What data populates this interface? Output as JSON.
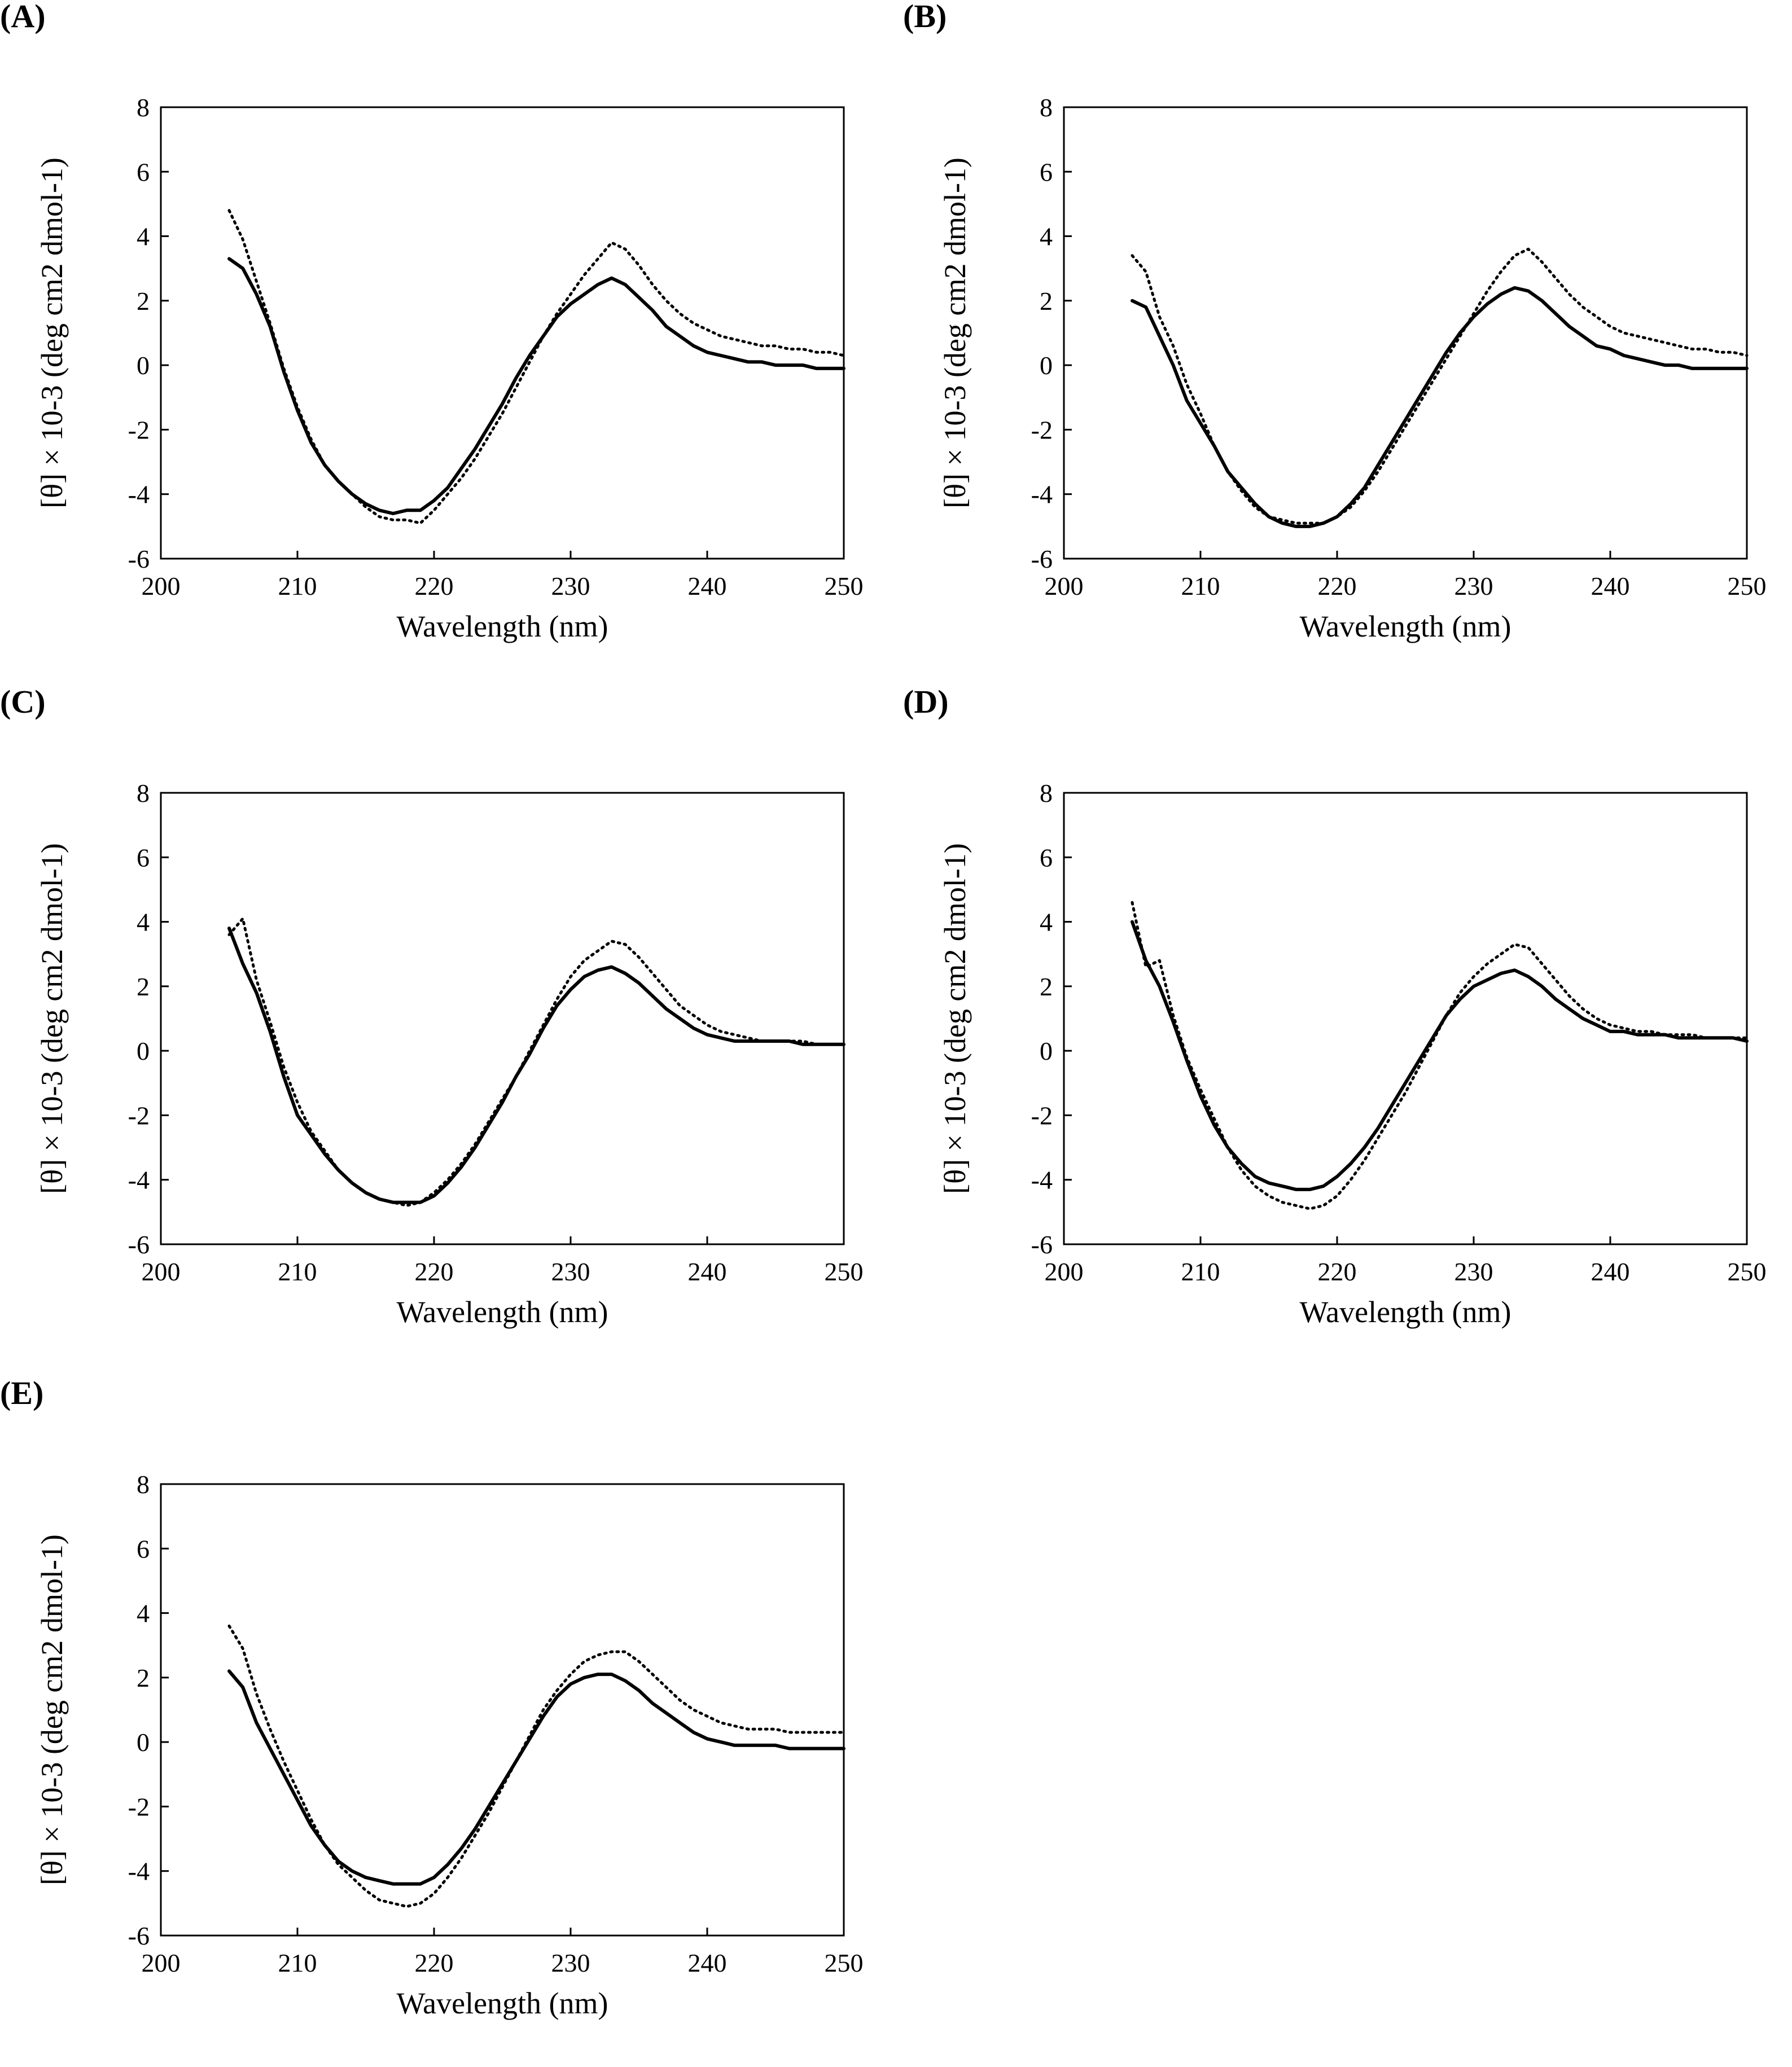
{
  "chart_data": [
    {
      "type": "line",
      "panel_label": "(A)",
      "xlabel": "Wavelength (nm)",
      "ylabel": "[θ] × 10-3 (deg cm2 dmol-1)",
      "xlim": [
        200,
        250
      ],
      "ylim": [
        -6,
        8
      ],
      "xticks": [
        "200",
        "210",
        "220",
        "230",
        "240",
        "250"
      ],
      "yticks": [
        "8",
        "6",
        "4",
        "2",
        "0",
        "-2",
        "-4",
        "-6"
      ],
      "series": [
        {
          "name": "solid",
          "style": "solid",
          "x": [
            205,
            206,
            207,
            208,
            209,
            210,
            211,
            212,
            213,
            214,
            215,
            216,
            217,
            218,
            219,
            220,
            221,
            222,
            223,
            224,
            225,
            226,
            227,
            228,
            229,
            230,
            231,
            232,
            233,
            234,
            235,
            236,
            237,
            238,
            239,
            240,
            241,
            242,
            243,
            244,
            245,
            246,
            247,
            248,
            249,
            250
          ],
          "y": [
            3.3,
            3.0,
            2.2,
            1.2,
            -0.2,
            -1.4,
            -2.4,
            -3.1,
            -3.6,
            -4.0,
            -4.3,
            -4.5,
            -4.6,
            -4.5,
            -4.5,
            -4.2,
            -3.8,
            -3.2,
            -2.6,
            -1.9,
            -1.2,
            -0.4,
            0.3,
            0.9,
            1.5,
            1.9,
            2.2,
            2.5,
            2.7,
            2.5,
            2.1,
            1.7,
            1.2,
            0.9,
            0.6,
            0.4,
            0.3,
            0.2,
            0.1,
            0.1,
            0.0,
            0.0,
            0.0,
            -0.1,
            -0.1,
            -0.1
          ]
        },
        {
          "name": "dotted",
          "style": "dotted",
          "x": [
            205,
            206,
            207,
            208,
            209,
            210,
            211,
            212,
            213,
            214,
            215,
            216,
            217,
            218,
            219,
            220,
            221,
            222,
            223,
            224,
            225,
            226,
            227,
            228,
            229,
            230,
            231,
            232,
            233,
            234,
            235,
            236,
            237,
            238,
            239,
            240,
            241,
            242,
            243,
            244,
            245,
            246,
            247,
            248,
            249,
            250
          ],
          "y": [
            4.8,
            3.9,
            2.6,
            1.3,
            -0.1,
            -1.3,
            -2.3,
            -3.1,
            -3.6,
            -4.0,
            -4.4,
            -4.7,
            -4.8,
            -4.8,
            -4.9,
            -4.5,
            -4.0,
            -3.5,
            -2.9,
            -2.2,
            -1.5,
            -0.7,
            0.1,
            0.9,
            1.6,
            2.2,
            2.8,
            3.3,
            3.8,
            3.6,
            3.1,
            2.5,
            2.0,
            1.6,
            1.3,
            1.1,
            0.9,
            0.8,
            0.7,
            0.6,
            0.6,
            0.5,
            0.5,
            0.4,
            0.4,
            0.3
          ]
        }
      ]
    },
    {
      "type": "line",
      "panel_label": "(B)",
      "xlabel": "Wavelength (nm)",
      "ylabel": "[θ] × 10-3 (deg cm2 dmol-1)",
      "xlim": [
        200,
        250
      ],
      "ylim": [
        -6,
        8
      ],
      "xticks": [
        "200",
        "210",
        "220",
        "230",
        "240",
        "250"
      ],
      "yticks": [
        "8",
        "6",
        "4",
        "2",
        "0",
        "-2",
        "-4",
        "-6"
      ],
      "series": [
        {
          "name": "solid",
          "style": "solid",
          "x": [
            205,
            206,
            207,
            208,
            209,
            210,
            211,
            212,
            213,
            214,
            215,
            216,
            217,
            218,
            219,
            220,
            221,
            222,
            223,
            224,
            225,
            226,
            227,
            228,
            229,
            230,
            231,
            232,
            233,
            234,
            235,
            236,
            237,
            238,
            239,
            240,
            241,
            242,
            243,
            244,
            245,
            246,
            247,
            248,
            249,
            250
          ],
          "y": [
            2.0,
            1.8,
            0.9,
            0.0,
            -1.1,
            -1.8,
            -2.5,
            -3.3,
            -3.8,
            -4.3,
            -4.7,
            -4.9,
            -5.0,
            -5.0,
            -4.9,
            -4.7,
            -4.3,
            -3.8,
            -3.1,
            -2.4,
            -1.7,
            -1.0,
            -0.3,
            0.4,
            1.0,
            1.5,
            1.9,
            2.2,
            2.4,
            2.3,
            2.0,
            1.6,
            1.2,
            0.9,
            0.6,
            0.5,
            0.3,
            0.2,
            0.1,
            0.0,
            0.0,
            -0.1,
            -0.1,
            -0.1,
            -0.1,
            -0.1
          ]
        },
        {
          "name": "dotted",
          "style": "dotted",
          "x": [
            205,
            206,
            207,
            208,
            209,
            210,
            211,
            212,
            213,
            214,
            215,
            216,
            217,
            218,
            219,
            220,
            221,
            222,
            223,
            224,
            225,
            226,
            227,
            228,
            229,
            230,
            231,
            232,
            233,
            234,
            235,
            236,
            237,
            238,
            239,
            240,
            241,
            242,
            243,
            244,
            245,
            246,
            247,
            248,
            249,
            250
          ],
          "y": [
            3.4,
            2.9,
            1.5,
            0.6,
            -0.6,
            -1.5,
            -2.5,
            -3.3,
            -3.9,
            -4.4,
            -4.7,
            -4.8,
            -4.9,
            -4.9,
            -4.9,
            -4.7,
            -4.4,
            -3.9,
            -3.3,
            -2.6,
            -1.9,
            -1.2,
            -0.5,
            0.2,
            0.9,
            1.6,
            2.3,
            2.9,
            3.4,
            3.6,
            3.2,
            2.7,
            2.2,
            1.8,
            1.5,
            1.2,
            1.0,
            0.9,
            0.8,
            0.7,
            0.6,
            0.5,
            0.5,
            0.4,
            0.4,
            0.3
          ]
        }
      ]
    },
    {
      "type": "line",
      "panel_label": "(C)",
      "xlabel": "Wavelength (nm)",
      "ylabel": "[θ] × 10-3 (deg cm2 dmol-1)",
      "xlim": [
        200,
        250
      ],
      "ylim": [
        -6,
        8
      ],
      "xticks": [
        "200",
        "210",
        "220",
        "230",
        "240",
        "250"
      ],
      "yticks": [
        "8",
        "6",
        "4",
        "2",
        "0",
        "-2",
        "-4",
        "-6"
      ],
      "series": [
        {
          "name": "solid",
          "style": "solid",
          "x": [
            205,
            206,
            207,
            208,
            209,
            210,
            211,
            212,
            213,
            214,
            215,
            216,
            217,
            218,
            219,
            220,
            221,
            222,
            223,
            224,
            225,
            226,
            227,
            228,
            229,
            230,
            231,
            232,
            233,
            234,
            235,
            236,
            237,
            238,
            239,
            240,
            241,
            242,
            243,
            244,
            245,
            246,
            247,
            248,
            249,
            250
          ],
          "y": [
            3.8,
            2.7,
            1.8,
            0.6,
            -0.8,
            -2.0,
            -2.6,
            -3.2,
            -3.7,
            -4.1,
            -4.4,
            -4.6,
            -4.7,
            -4.7,
            -4.7,
            -4.5,
            -4.1,
            -3.6,
            -3.0,
            -2.3,
            -1.6,
            -0.8,
            -0.1,
            0.7,
            1.4,
            1.9,
            2.3,
            2.5,
            2.6,
            2.4,
            2.1,
            1.7,
            1.3,
            1.0,
            0.7,
            0.5,
            0.4,
            0.3,
            0.3,
            0.3,
            0.3,
            0.3,
            0.2,
            0.2,
            0.2,
            0.2
          ]
        },
        {
          "name": "dotted",
          "style": "dotted",
          "x": [
            205,
            206,
            207,
            208,
            209,
            210,
            211,
            212,
            213,
            214,
            215,
            216,
            217,
            218,
            219,
            220,
            221,
            222,
            223,
            224,
            225,
            226,
            227,
            228,
            229,
            230,
            231,
            232,
            233,
            234,
            235,
            236,
            237,
            238,
            239,
            240,
            241,
            242,
            243,
            244,
            245,
            246,
            247,
            248,
            249,
            250
          ],
          "y": [
            3.6,
            4.1,
            2.2,
            0.9,
            -0.5,
            -1.6,
            -2.5,
            -3.1,
            -3.7,
            -4.1,
            -4.4,
            -4.6,
            -4.7,
            -4.8,
            -4.7,
            -4.4,
            -4.0,
            -3.5,
            -2.9,
            -2.2,
            -1.5,
            -0.8,
            0.0,
            0.8,
            1.6,
            2.3,
            2.8,
            3.1,
            3.4,
            3.3,
            2.9,
            2.4,
            1.9,
            1.4,
            1.1,
            0.8,
            0.6,
            0.5,
            0.4,
            0.3,
            0.3,
            0.3,
            0.3,
            0.2,
            0.2,
            0.2
          ]
        }
      ]
    },
    {
      "type": "line",
      "panel_label": "(D)",
      "xlabel": "Wavelength (nm)",
      "ylabel": "[θ] × 10-3 (deg cm2 dmol-1)",
      "xlim": [
        200,
        250
      ],
      "ylim": [
        -6,
        8
      ],
      "xticks": [
        "200",
        "210",
        "220",
        "230",
        "240",
        "250"
      ],
      "yticks": [
        "8",
        "6",
        "4",
        "2",
        "0",
        "-2",
        "-4",
        "-6"
      ],
      "series": [
        {
          "name": "solid",
          "style": "solid",
          "x": [
            205,
            206,
            207,
            208,
            209,
            210,
            211,
            212,
            213,
            214,
            215,
            216,
            217,
            218,
            219,
            220,
            221,
            222,
            223,
            224,
            225,
            226,
            227,
            228,
            229,
            230,
            231,
            232,
            233,
            234,
            235,
            236,
            237,
            238,
            239,
            240,
            241,
            242,
            243,
            244,
            245,
            246,
            247,
            248,
            249,
            250
          ],
          "y": [
            4.0,
            2.8,
            2.0,
            0.9,
            -0.3,
            -1.4,
            -2.3,
            -3.0,
            -3.5,
            -3.9,
            -4.1,
            -4.2,
            -4.3,
            -4.3,
            -4.2,
            -3.9,
            -3.5,
            -3.0,
            -2.4,
            -1.7,
            -1.0,
            -0.3,
            0.4,
            1.1,
            1.6,
            2.0,
            2.2,
            2.4,
            2.5,
            2.3,
            2.0,
            1.6,
            1.3,
            1.0,
            0.8,
            0.6,
            0.6,
            0.5,
            0.5,
            0.5,
            0.4,
            0.4,
            0.4,
            0.4,
            0.4,
            0.3
          ]
        },
        {
          "name": "dotted",
          "style": "dotted",
          "x": [
            205,
            206,
            207,
            208,
            209,
            210,
            211,
            212,
            213,
            214,
            215,
            216,
            217,
            218,
            219,
            220,
            221,
            222,
            223,
            224,
            225,
            226,
            227,
            228,
            229,
            230,
            231,
            232,
            233,
            234,
            235,
            236,
            237,
            238,
            239,
            240,
            241,
            242,
            243,
            244,
            245,
            246,
            247,
            248,
            249,
            250
          ],
          "y": [
            4.6,
            2.6,
            2.8,
            1.1,
            -0.2,
            -1.2,
            -2.1,
            -3.0,
            -3.7,
            -4.2,
            -4.5,
            -4.7,
            -4.8,
            -4.9,
            -4.8,
            -4.5,
            -4.0,
            -3.4,
            -2.7,
            -2.0,
            -1.3,
            -0.5,
            0.3,
            1.1,
            1.8,
            2.3,
            2.7,
            3.0,
            3.3,
            3.2,
            2.7,
            2.2,
            1.7,
            1.3,
            1.0,
            0.8,
            0.7,
            0.6,
            0.6,
            0.5,
            0.5,
            0.5,
            0.4,
            0.4,
            0.4,
            0.4
          ]
        }
      ]
    },
    {
      "type": "line",
      "panel_label": "(E)",
      "xlabel": "Wavelength (nm)",
      "ylabel": "[θ] × 10-3 (deg cm2 dmol-1)",
      "xlim": [
        200,
        250
      ],
      "ylim": [
        -6,
        8
      ],
      "xticks": [
        "200",
        "210",
        "220",
        "230",
        "240",
        "250"
      ],
      "yticks": [
        "8",
        "6",
        "4",
        "2",
        "0",
        "-2",
        "-4",
        "-6"
      ],
      "series": [
        {
          "name": "solid",
          "style": "solid",
          "x": [
            205,
            206,
            207,
            208,
            209,
            210,
            211,
            212,
            213,
            214,
            215,
            216,
            217,
            218,
            219,
            220,
            221,
            222,
            223,
            224,
            225,
            226,
            227,
            228,
            229,
            230,
            231,
            232,
            233,
            234,
            235,
            236,
            237,
            238,
            239,
            240,
            241,
            242,
            243,
            244,
            245,
            246,
            247,
            248,
            249,
            250
          ],
          "y": [
            2.2,
            1.7,
            0.6,
            -0.2,
            -1.0,
            -1.8,
            -2.6,
            -3.2,
            -3.7,
            -4.0,
            -4.2,
            -4.3,
            -4.4,
            -4.4,
            -4.4,
            -4.2,
            -3.8,
            -3.3,
            -2.7,
            -2.0,
            -1.3,
            -0.6,
            0.1,
            0.8,
            1.4,
            1.8,
            2.0,
            2.1,
            2.1,
            1.9,
            1.6,
            1.2,
            0.9,
            0.6,
            0.3,
            0.1,
            0.0,
            -0.1,
            -0.1,
            -0.1,
            -0.1,
            -0.2,
            -0.2,
            -0.2,
            -0.2,
            -0.2
          ]
        },
        {
          "name": "dotted",
          "style": "dotted",
          "x": [
            205,
            206,
            207,
            208,
            209,
            210,
            211,
            212,
            213,
            214,
            215,
            216,
            217,
            218,
            219,
            220,
            221,
            222,
            223,
            224,
            225,
            226,
            227,
            228,
            229,
            230,
            231,
            232,
            233,
            234,
            235,
            236,
            237,
            238,
            239,
            240,
            241,
            242,
            243,
            244,
            245,
            246,
            247,
            248,
            249,
            250
          ],
          "y": [
            3.6,
            2.9,
            1.5,
            0.4,
            -0.6,
            -1.5,
            -2.4,
            -3.2,
            -3.8,
            -4.2,
            -4.6,
            -4.9,
            -5.0,
            -5.1,
            -5.0,
            -4.7,
            -4.2,
            -3.6,
            -2.9,
            -2.2,
            -1.4,
            -0.6,
            0.2,
            1.0,
            1.6,
            2.1,
            2.5,
            2.7,
            2.8,
            2.8,
            2.5,
            2.1,
            1.7,
            1.3,
            1.0,
            0.8,
            0.6,
            0.5,
            0.4,
            0.4,
            0.4,
            0.3,
            0.3,
            0.3,
            0.3,
            0.3
          ]
        }
      ]
    }
  ]
}
